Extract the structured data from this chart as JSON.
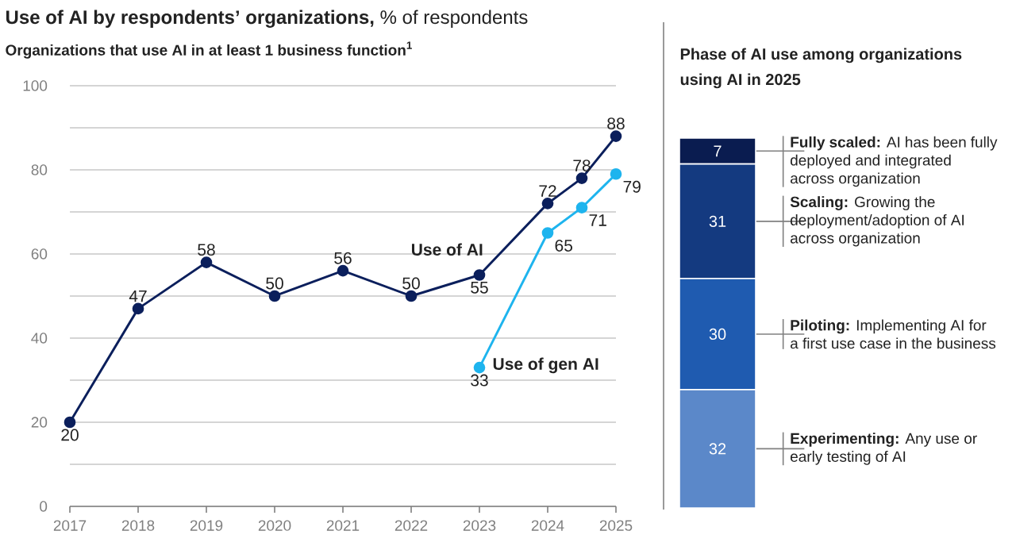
{
  "chart_data": [
    {
      "type": "line",
      "title": "**Use of AI by respondents’ organizations,** % of respondents",
      "subtitle": "Organizations that use AI in at least 1 business function$^{1}$",
      "x": [
        2017,
        2018,
        2019,
        2020,
        2021,
        2022,
        2023,
        2024,
        2024.5,
        2025
      ],
      "series": [
        {
          "name": "Use of AI",
          "color": "#0b1f5c",
          "values": [
            20,
            47,
            58,
            50,
            56,
            50,
            55,
            72,
            78,
            88
          ]
        },
        {
          "name": "Use of gen AI",
          "color": "#1eb4ee",
          "x": [
            2023,
            2024,
            2024.5,
            2025
          ],
          "values": [
            33,
            65,
            71,
            79
          ]
        }
      ],
      "xlim": [
        2017,
        2025
      ],
      "xticks": [
        2017,
        2018,
        2019,
        2020,
        2021,
        2022,
        2023,
        2024,
        2025
      ],
      "ylim": [
        0,
        100
      ],
      "yticks": [
        0,
        {
          "value": 10,
          "label": null
        },
        20,
        {
          "value": 30,
          "label": null
        },
        40,
        {
          "value": 50,
          "label": null
        },
        60,
        {
          "value": 70,
          "label": null
        },
        80,
        {
          "value": 90,
          "label": null
        },
        100
      ],
      "grid": "y",
      "marker": "circle",
      "line_style": "solid",
      "data_labels": true
    },
    {
      "type": "bar",
      "stacked": true,
      "title": "Phase of AI use among organizations using AI in 2025",
      "categories": [
        null
      ],
      "series": [
        {
          "name": "**Experimenting:** Any use or early testing of AI",
          "color": "#5b88c9",
          "values": [
            32
          ]
        },
        {
          "name": "**Piloting:** Implementing AI for a first use case in the business",
          "color": "#1f5bb0",
          "values": [
            30
          ]
        },
        {
          "name": "**Scaling:** Growing the deployment/adoption of AI across organization",
          "color": "#143a80",
          "values": [
            31
          ]
        },
        {
          "name": "**Fully scaled:** AI has been fully deployed and integrated across organization",
          "color": "#0a1c50",
          "values": [
            7
          ]
        }
      ],
      "tick_labels": false,
      "data_labels": true
    }
  ]
}
